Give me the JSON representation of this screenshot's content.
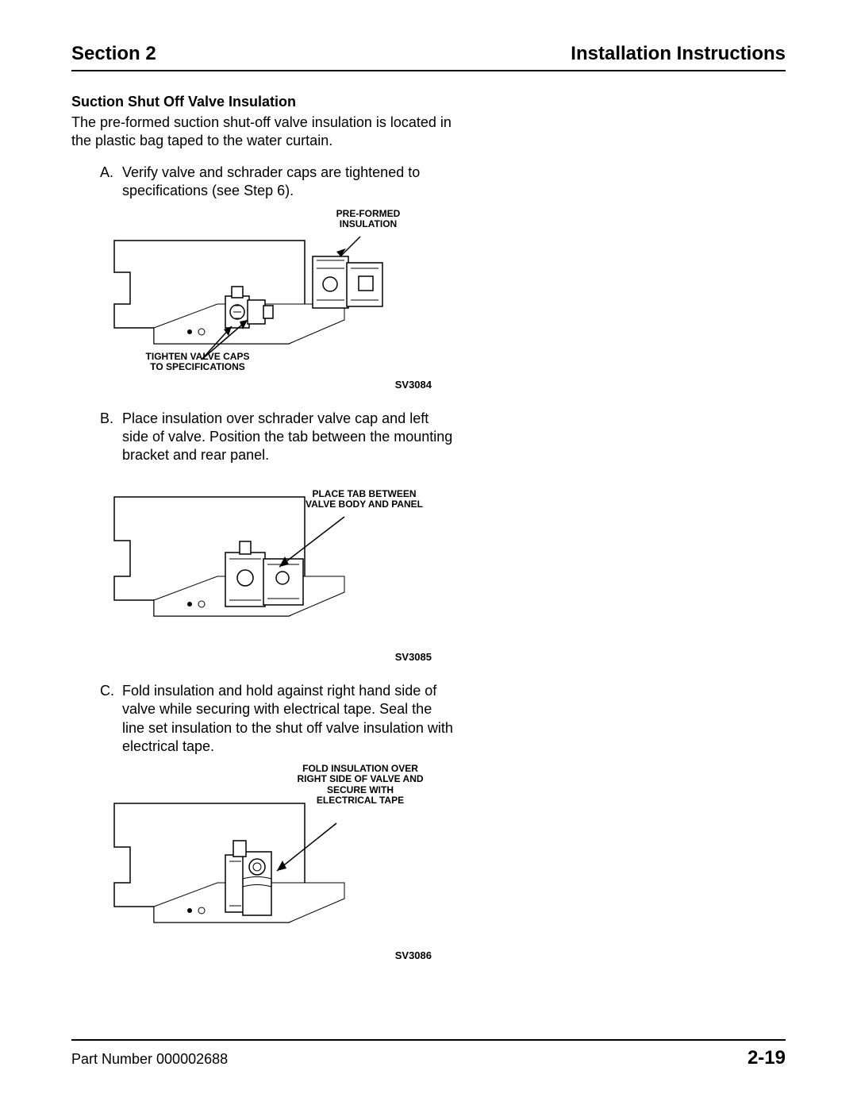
{
  "header": {
    "section": "Section 2",
    "title": "Installation Instructions"
  },
  "subheading": "Suction Shut Off Valve Insulation",
  "intro": "The pre-formed suction shut-off valve insulation is located in the plastic bag taped to the water curtain.",
  "steps": {
    "a": {
      "letter": "A.",
      "text": "Verify valve and schrader caps are tightened to specifications (see Step 6)."
    },
    "b": {
      "letter": "B.",
      "text": "Place insulation over schrader valve cap and left side of valve. Position the tab between the mounting bracket and rear panel."
    },
    "c": {
      "letter": "C.",
      "text": "Fold insulation and hold against right hand side of valve while securing with electrical tape. Seal the line set insulation to the shut off valve insulation with electrical tape."
    }
  },
  "figures": {
    "f1": {
      "label_top": "PRE-FORMED\nINSULATION",
      "label_bottom": "TIGHTEN VALVE CAPS\nTO SPECIFICATIONS",
      "caption": "SV3084",
      "stroke": "#000000",
      "fill": "#ffffff"
    },
    "f2": {
      "label_top": "PLACE TAB BETWEEN\nVALVE BODY AND PANEL",
      "caption": "SV3085",
      "stroke": "#000000",
      "fill": "#ffffff"
    },
    "f3": {
      "label_top": "FOLD INSULATION OVER\nRIGHT SIDE OF VALVE AND\nSECURE WITH\nELECTRICAL TAPE",
      "caption": "SV3086",
      "stroke": "#000000",
      "fill": "#ffffff"
    }
  },
  "footer": {
    "part": "Part Number 000002688",
    "page": "2-19"
  }
}
